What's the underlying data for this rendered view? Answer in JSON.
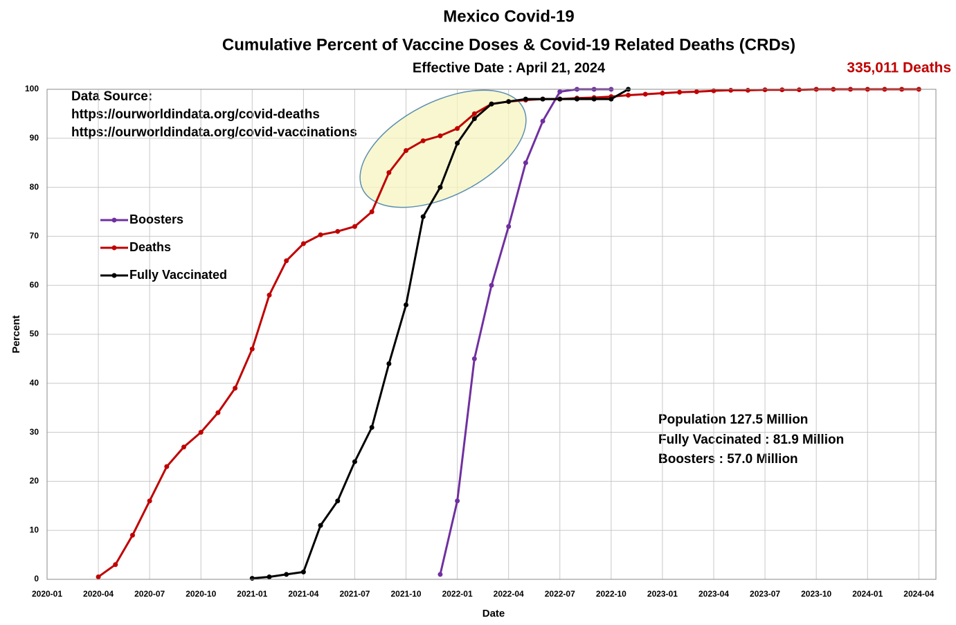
{
  "chart_data": {
    "type": "line",
    "title": "Mexico Covid-19",
    "subtitle": "Cumulative Percent of Vaccine Doses & Covid-19 Related Deaths (CRDs)",
    "effective_date": "Effective Date : April 21, 2024",
    "deaths_label": "335,011 Deaths",
    "source_lines": [
      "Data Source:",
      "https://ourworldindata.org/covid-deaths",
      "https://ourworldindata.org/covid-vaccinations"
    ],
    "stats_lines": [
      "Population  127.5 Million",
      "Fully Vaccinated : 81.9 Million",
      "Boosters : 57.0 Million"
    ],
    "x_label": "Date",
    "y_label": "Percent",
    "x": [
      "2020-04",
      "2020-05",
      "2020-06",
      "2020-07",
      "2020-08",
      "2020-09",
      "2020-10",
      "2020-11",
      "2020-12",
      "2021-01",
      "2021-02",
      "2021-03",
      "2021-04",
      "2021-05",
      "2021-06",
      "2021-07",
      "2021-08",
      "2021-09",
      "2021-10",
      "2021-11",
      "2021-12",
      "2022-01",
      "2022-02",
      "2022-03",
      "2022-04",
      "2022-05",
      "2022-06",
      "2022-07",
      "2022-08",
      "2022-09",
      "2022-10",
      "2022-11",
      "2022-12",
      "2023-01",
      "2023-02",
      "2023-03",
      "2023-04",
      "2023-05",
      "2023-06",
      "2023-07",
      "2023-08",
      "2023-09",
      "2023-10",
      "2023-11",
      "2023-12",
      "2024-01",
      "2024-02",
      "2024-03",
      "2024-04"
    ],
    "series": [
      {
        "name": "Boosters",
        "color": "#7030a0",
        "values": [
          null,
          null,
          null,
          null,
          null,
          null,
          null,
          null,
          null,
          null,
          null,
          null,
          null,
          null,
          null,
          null,
          null,
          null,
          null,
          null,
          1,
          16,
          45,
          60,
          72,
          85,
          93.5,
          99.5,
          100,
          100,
          100,
          null,
          null,
          null,
          null,
          null,
          null,
          null,
          null,
          null,
          null,
          null,
          null,
          null,
          null,
          null,
          null,
          null,
          null
        ]
      },
      {
        "name": "Deaths",
        "color": "#c00000",
        "values": [
          0.5,
          3,
          9,
          16,
          23,
          27,
          30,
          34,
          39,
          47,
          58,
          65,
          68.5,
          70.3,
          71,
          72,
          75,
          83,
          87.5,
          89.5,
          90.5,
          92,
          95,
          97,
          97.5,
          97.8,
          98,
          98,
          98.2,
          98.3,
          98.5,
          98.8,
          99,
          99.2,
          99.4,
          99.5,
          99.7,
          99.8,
          99.8,
          99.9,
          99.9,
          99.9,
          100,
          100,
          100,
          100,
          100,
          100,
          100
        ]
      },
      {
        "name": "Fully Vaccinated",
        "color": "#000000",
        "values": [
          null,
          null,
          null,
          null,
          null,
          null,
          null,
          null,
          null,
          0.2,
          0.5,
          1,
          1.5,
          11,
          16,
          24,
          31,
          44,
          56,
          74,
          80,
          89,
          94,
          97,
          97.5,
          98,
          98,
          98,
          98,
          98,
          98,
          100,
          null,
          null,
          null,
          null,
          null,
          null,
          null,
          null,
          null,
          null,
          null,
          null,
          null,
          null,
          null,
          null,
          null
        ]
      }
    ],
    "xlim": [
      "2020-01",
      "2024-05"
    ],
    "xticks": [
      "2020-01",
      "2020-04",
      "2020-07",
      "2020-10",
      "2021-01",
      "2021-04",
      "2021-07",
      "2021-10",
      "2022-01",
      "2022-04",
      "2022-07",
      "2022-10",
      "2023-01",
      "2023-04",
      "2023-07",
      "2023-10",
      "2024-01",
      "2024-04"
    ],
    "ylim": [
      0,
      100
    ],
    "yticks": [
      0,
      10,
      20,
      30,
      40,
      50,
      60,
      70,
      80,
      90,
      100
    ],
    "grid": true,
    "legend": "left"
  }
}
